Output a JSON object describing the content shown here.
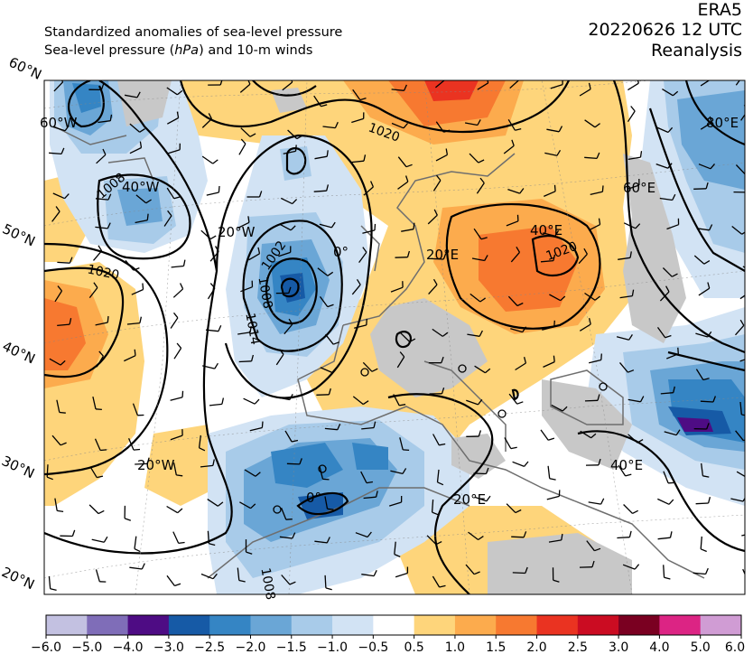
{
  "header": {
    "title_line1": "Standardized anomalies of sea-level pressure",
    "title_line2_pre": "Sea-level pressure (",
    "title_line2_unit": "hPa",
    "title_line2_post": ") and 10-m winds",
    "dataset": "ERA5",
    "datetime": "20220626 12 UTC",
    "product": "Reanalysis"
  },
  "map": {
    "lat_labels": [
      "60°N",
      "50°N",
      "40°N",
      "30°N",
      "20°N"
    ],
    "lon_labels": [
      "60°W",
      "40°W",
      "20°W",
      "0°",
      "20°E",
      "40°E",
      "60°E",
      "80°E",
      "20°W",
      "0°",
      "20°E",
      "40°E"
    ],
    "isobar_labels": [
      "1020",
      "1008",
      "1002",
      "1008",
      "1014",
      "1020",
      "1020",
      "1008"
    ],
    "colors": {
      "land_gray": "#c8c8c8",
      "coast": "#6e6e6e",
      "isobar": "#000000"
    }
  },
  "colorbar": {
    "ticks": [
      "−6.0",
      "−5.0",
      "−4.0",
      "−3.0",
      "−2.5",
      "−2.0",
      "−1.5",
      "−1.0",
      "−0.5",
      "0.5",
      "1.0",
      "1.5",
      "2.0",
      "2.5",
      "3.0",
      "4.0",
      "5.0",
      "6.0"
    ],
    "colors": [
      "#c3c1e1",
      "#7f6db8",
      "#4e0c84",
      "#165aa6",
      "#3585c4",
      "#6aa6d6",
      "#a8cbe9",
      "#d2e3f4",
      "#ffffff",
      "#fed57b",
      "#fcab4d",
      "#f77930",
      "#ea3321",
      "#cb0c22",
      "#7a0021",
      "#dc2484",
      "#d09cd4"
    ]
  }
}
